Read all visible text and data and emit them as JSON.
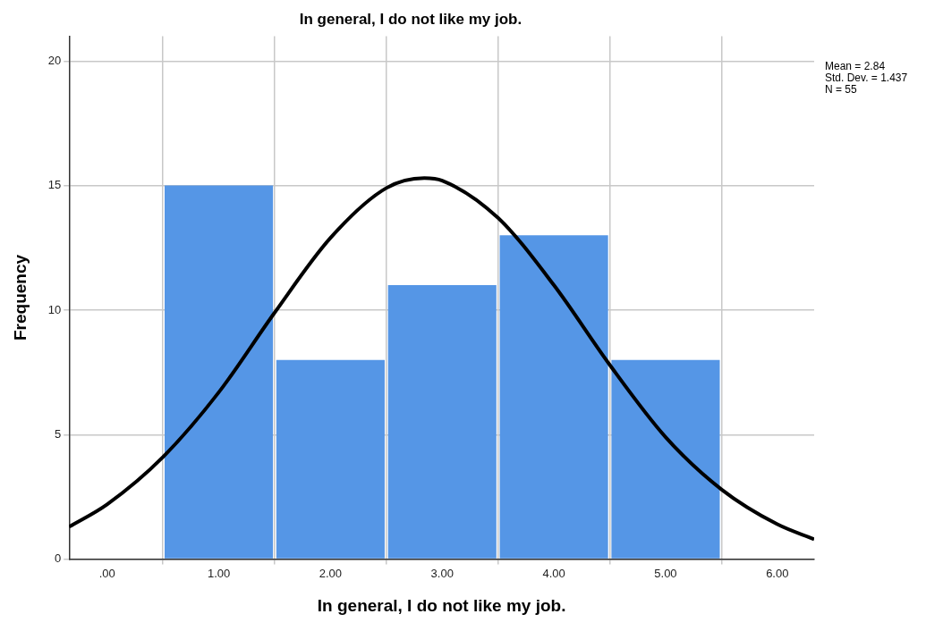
{
  "chart_data": {
    "type": "histogram",
    "title": "In general, I do not like my job.",
    "xlabel": "In general, I do not like my job.",
    "ylabel": "Frequency",
    "bins": [
      0.5,
      1.5,
      2.5,
      3.5,
      4.5,
      5.5
    ],
    "values": [
      15,
      8,
      11,
      13,
      8
    ],
    "color": "#5596e6",
    "series": [
      {
        "type": "line",
        "color": "#000000",
        "x": [
          -0.34,
          0,
          0.5,
          1,
          1.5,
          2,
          2.5,
          2.84,
          3,
          3.5,
          4,
          4.5,
          5,
          5.5,
          6,
          6.33
        ],
        "values": [
          1.3,
          2.2,
          4.1,
          6.7,
          9.9,
          12.9,
          14.9,
          15.3,
          15.2,
          13.7,
          11.0,
          7.8,
          4.9,
          2.8,
          1.4,
          0.8
        ]
      }
    ],
    "xlim": [
      -0.34,
      6.33
    ],
    "xticks": [
      {
        "value": 0,
        "label": ".00"
      },
      {
        "value": 1,
        "label": "1.00"
      },
      {
        "value": 2,
        "label": "2.00"
      },
      {
        "value": 3,
        "label": "3.00"
      },
      {
        "value": 4,
        "label": "4.00"
      },
      {
        "value": 5,
        "label": "5.00"
      },
      {
        "value": 6,
        "label": "6.00"
      }
    ],
    "ylim": [
      0,
      21
    ],
    "yticks": [
      0,
      5,
      10,
      15,
      20
    ],
    "grid": true,
    "annotations": [
      "Mean = 2.84",
      "Std. Dev. = 1.437",
      "N = 55"
    ]
  }
}
